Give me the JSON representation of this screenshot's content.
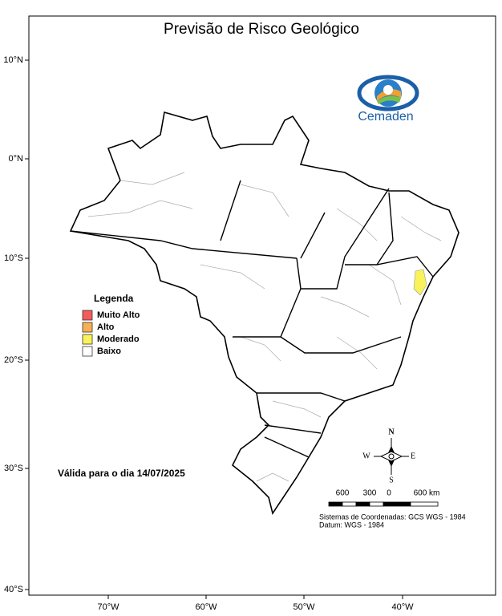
{
  "title": "Previsão de Risco Geológico",
  "logo": {
    "name": "Cemaden"
  },
  "axes": {
    "y_labels": [
      "10°N",
      "0°N",
      "10°S",
      "20°S",
      "30°S",
      "40°S"
    ],
    "x_labels": [
      "70°W",
      "60°W",
      "50°W",
      "40°W"
    ]
  },
  "legend": {
    "title": "Legenda",
    "items": [
      {
        "label": "Muito Alto",
        "color": "#f25c5c"
      },
      {
        "label": "Alto",
        "color": "#f7b052"
      },
      {
        "label": "Moderado",
        "color": "#f9f25a"
      },
      {
        "label": "Baixo",
        "color": "#ffffff"
      }
    ]
  },
  "validity": "Válida para o dia 14/07/2025",
  "compass": {
    "n": "N",
    "s": "S",
    "e": "E",
    "w": "W"
  },
  "scale": {
    "labels": [
      "600",
      "300",
      "0",
      "600 km"
    ]
  },
  "footnotes": [
    "Sistemas de Coordenadas: GCS WGS - 1984",
    "Datum: WGS - 1984"
  ]
}
